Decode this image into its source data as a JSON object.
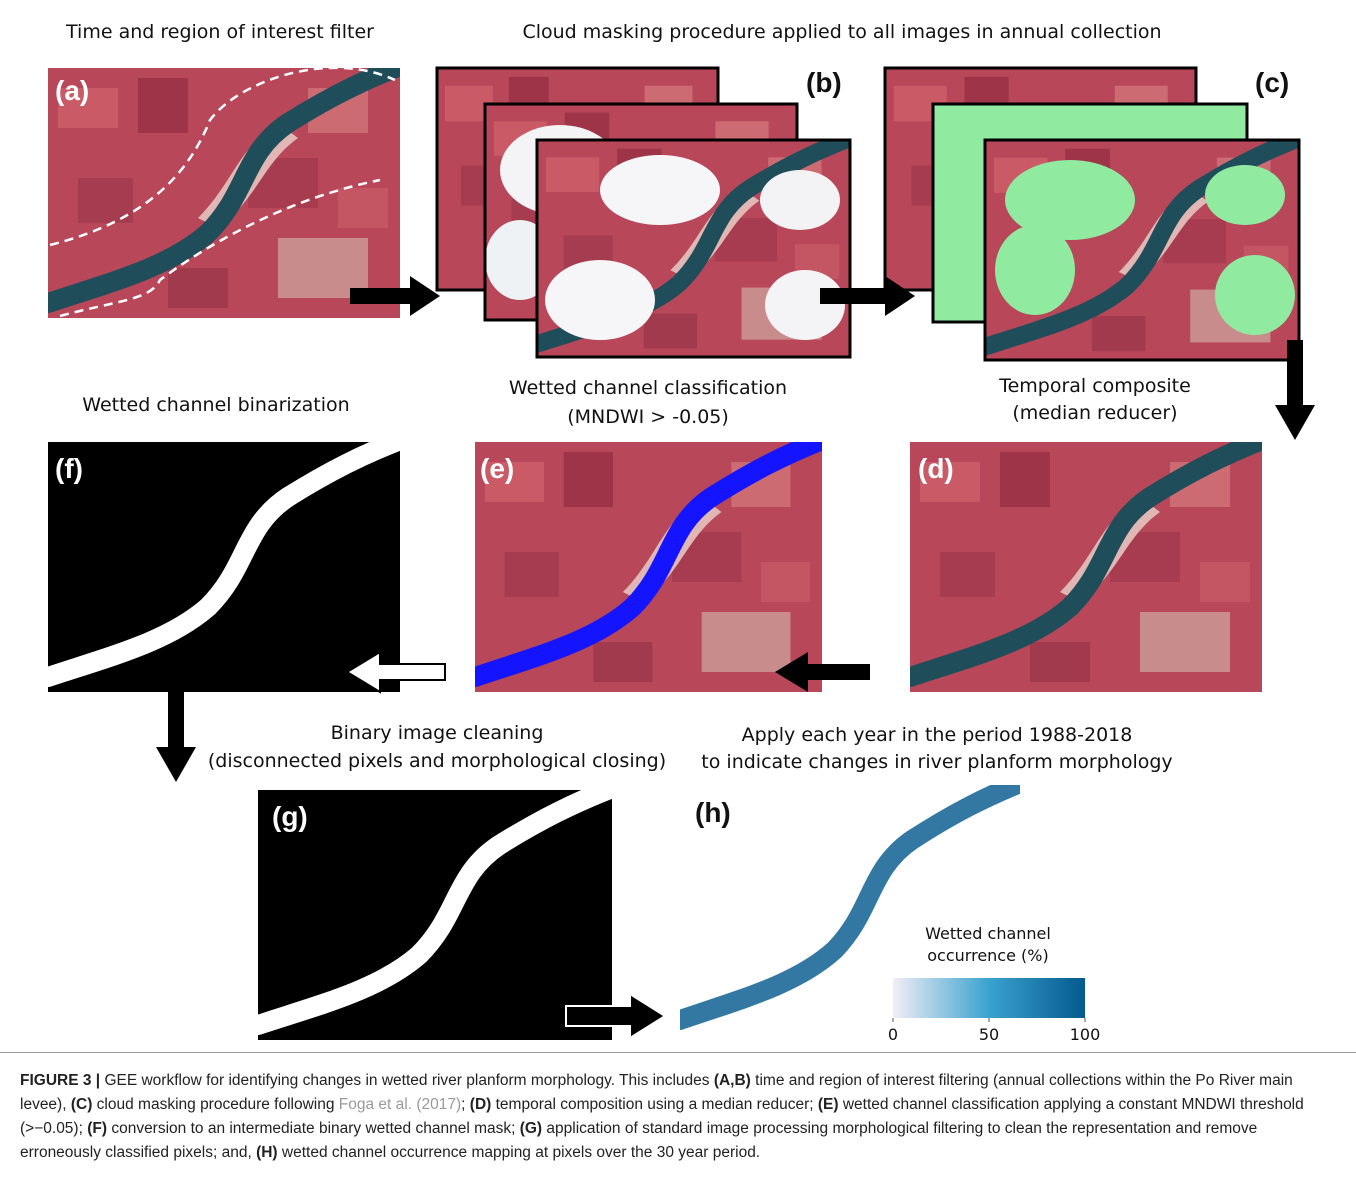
{
  "steps": {
    "a": {
      "label": "(a)",
      "title": [
        "Time and region of interest filter"
      ]
    },
    "bc": {
      "title": [
        "Cloud masking procedure applied to all images in annual collection"
      ]
    },
    "b": {
      "label": "(b)"
    },
    "c": {
      "label": "(c)"
    },
    "d": {
      "label": "(d)",
      "title": [
        "Temporal composite",
        "(median reducer)"
      ]
    },
    "e": {
      "label": "(e)",
      "title": [
        "Wetted channel classification",
        "(MNDWI > -0.05)"
      ]
    },
    "f": {
      "label": "(f)",
      "title": [
        "Wetted channel binarization"
      ]
    },
    "g": {
      "label": "(g)",
      "title": [
        "Binary image cleaning",
        "(disconnected pixels and morphological closing)"
      ]
    },
    "h": {
      "label": "(h)",
      "title": [
        "Apply each year in the period 1988-2018",
        "to indicate changes in river planform morphology"
      ]
    }
  },
  "colorbar": {
    "label": [
      "Wetted channel",
      "occurrence (%)"
    ],
    "lim": [
      0,
      100
    ],
    "ticks": [
      0,
      50,
      100
    ]
  },
  "caption": {
    "parts": [
      "FIGURE 3 |",
      " GEE workflow for identifying changes in wetted river planform morphology. This includes ",
      "(A,B)",
      " time and region of interest filtering (annual collections within the Po River main levee), ",
      "(C)",
      " cloud masking procedure following ",
      "Foga et al. (2017)",
      "; ",
      "(D)",
      " temporal composition using a median reducer; ",
      "(E)",
      " wetted channel classification applying a constant MNDWI threshold (>−0.05); ",
      "(F)",
      " conversion to an intermediate binary wetted channel mask; ",
      "(G)",
      " application of standard image processing morphological filtering to clean the representation and remove erroneously classified pixels; and, ",
      "(H)",
      " wetted channel occurrence mapping at pixels over the 30 year period."
    ]
  }
}
